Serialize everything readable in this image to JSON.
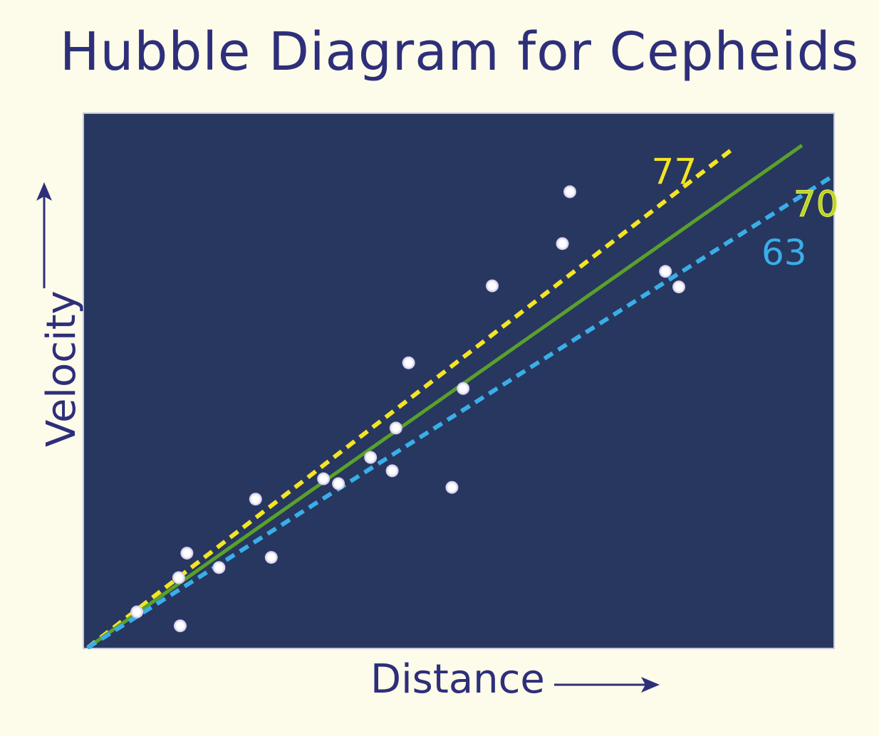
{
  "chart_data": {
    "type": "scatter",
    "title": "Hubble Diagram for Cepheids",
    "xlabel": "Distance",
    "ylabel": "Velocity",
    "xlim": [
      0,
      100
    ],
    "ylim": [
      0,
      100
    ],
    "grid": false,
    "points": [
      {
        "x": 6.6,
        "y": 6.7
      },
      {
        "x": 12.2,
        "y": 13.1
      },
      {
        "x": 13.3,
        "y": 17.7
      },
      {
        "x": 12.4,
        "y": 4.1
      },
      {
        "x": 17.6,
        "y": 15.0
      },
      {
        "x": 22.5,
        "y": 27.8
      },
      {
        "x": 24.6,
        "y": 16.9
      },
      {
        "x": 31.6,
        "y": 31.6
      },
      {
        "x": 33.6,
        "y": 30.7
      },
      {
        "x": 37.9,
        "y": 35.6
      },
      {
        "x": 40.8,
        "y": 33.1
      },
      {
        "x": 41.3,
        "y": 41.1
      },
      {
        "x": 43.0,
        "y": 53.3
      },
      {
        "x": 48.8,
        "y": 30.0
      },
      {
        "x": 50.3,
        "y": 48.5
      },
      {
        "x": 54.2,
        "y": 67.7
      },
      {
        "x": 63.6,
        "y": 75.6
      },
      {
        "x": 64.6,
        "y": 85.3
      },
      {
        "x": 77.4,
        "y": 70.4
      },
      {
        "x": 79.2,
        "y": 67.5
      }
    ],
    "series": [
      {
        "name": "77",
        "slope": 1.08,
        "color": "#f4e424",
        "style": "dashed",
        "x_end": 86.5
      },
      {
        "name": "70",
        "slope": 0.982,
        "color": "#5aa02c",
        "style": "solid",
        "x_end": 95.7
      },
      {
        "name": "63",
        "slope": 0.884,
        "color": "#3aaee8",
        "style": "dashed",
        "x_end": 100
      }
    ],
    "colors": {
      "plot_background": "#27375f",
      "page_background": "#fdfbe9",
      "text": "#2e2f7a",
      "points": "#ffffff"
    }
  }
}
